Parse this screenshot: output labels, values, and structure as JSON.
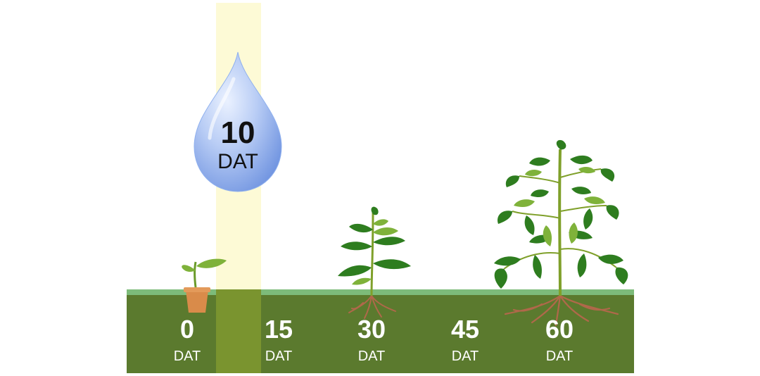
{
  "colors": {
    "soil": "#5b7a2e",
    "grass": "#7dbb7a",
    "highlight": "#fdfad6",
    "highlight_soil": "#7a942f",
    "leaf_dark": "#2e7d1f",
    "leaf_light": "#7fb23a",
    "root": "#b0684a",
    "pot": "#d98b4a",
    "drop": "#a9c1f0"
  },
  "drop": {
    "icon": "water-drop-icon",
    "number": "10",
    "unit": "DAT"
  },
  "stages": [
    {
      "number": "0",
      "unit": "DAT",
      "plant": "seedling-in-pot"
    },
    {
      "number": "15",
      "unit": "DAT",
      "plant": "none"
    },
    {
      "number": "30",
      "unit": "DAT",
      "plant": "young-tomato-plant"
    },
    {
      "number": "45",
      "unit": "DAT",
      "plant": "none"
    },
    {
      "number": "60",
      "unit": "DAT",
      "plant": "mature-tomato-plant"
    }
  ]
}
